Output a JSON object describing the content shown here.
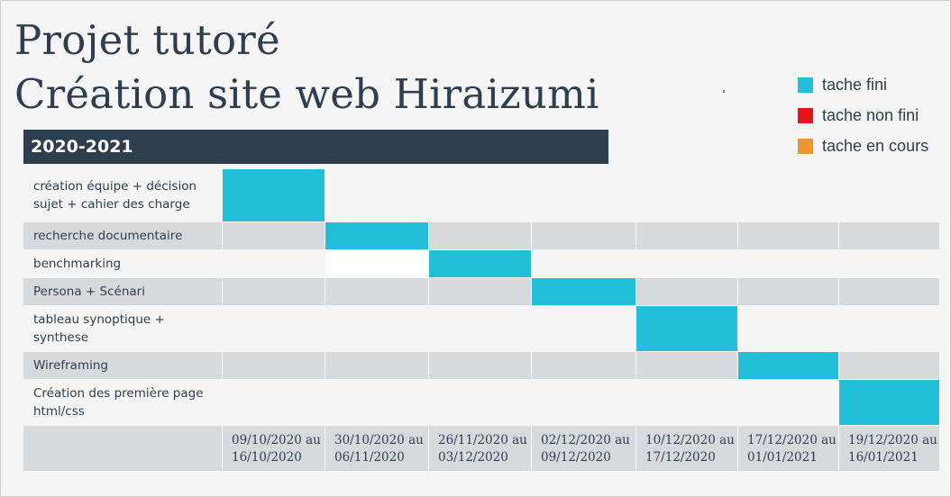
{
  "title_lines": [
    "Projet tutoré",
    "Création site web Hiraizumi"
  ],
  "year_label": "2020-2021",
  "legend": [
    {
      "label": "tache fini",
      "color": "#22bfd9"
    },
    {
      "label": "tache non fini",
      "color": "#e8141c"
    },
    {
      "label": "tache en cours",
      "color": "#f0962e"
    }
  ],
  "colors": {
    "done": "#22bfd9",
    "row_shade": "#d6dadd",
    "header": "#2e3e4e",
    "background": "#f5f5f5"
  },
  "chart_data": {
    "type": "table",
    "periods": [
      "09/10/2020 au\n16/10/2020",
      "30/10/2020 au\n06/11/2020",
      "26/11/2020 au\n03/12/2020",
      "02/12/2020 au\n09/12/2020",
      "10/12/2020 au\n17/12/2020",
      "17/12/2020 au\n01/01/2021",
      "19/12/2020 au\n16/01/2021"
    ],
    "tasks": [
      {
        "name": "création équipe + décision sujet + cahier des charge",
        "period_index": 0,
        "status": "tache fini"
      },
      {
        "name": "recherche documentaire",
        "period_index": 1,
        "status": "tache fini"
      },
      {
        "name": "benchmarking",
        "period_index": 2,
        "status": "tache fini"
      },
      {
        "name": "Persona + Scénari",
        "period_index": 3,
        "status": "tache fini"
      },
      {
        "name": "tableau synoptique + synthese",
        "period_index": 4,
        "status": "tache fini"
      },
      {
        "name": "Wireframing",
        "period_index": 5,
        "status": "tache fini"
      },
      {
        "name": "Création des première page html/css",
        "period_index": 6,
        "status": "tache fini"
      }
    ]
  }
}
